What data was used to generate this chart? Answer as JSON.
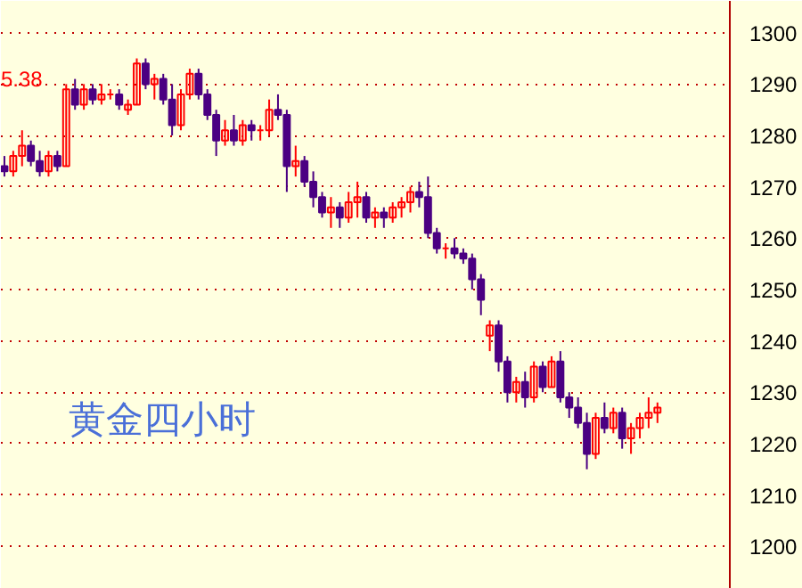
{
  "chart_data": {
    "type": "candlestick",
    "categories": [
      null,
      null,
      null,
      null,
      null,
      null,
      null,
      null,
      null,
      null,
      null,
      null,
      null,
      null,
      null,
      null,
      null,
      null,
      null,
      null,
      null,
      null,
      null,
      null,
      null,
      null,
      null,
      null,
      null,
      null,
      null,
      null,
      null,
      null,
      null,
      null,
      null,
      null,
      null,
      null,
      null,
      null,
      null,
      null,
      null,
      null,
      null,
      null,
      null,
      null,
      null,
      null,
      null,
      null,
      null,
      null,
      null,
      null,
      null,
      null,
      null,
      null,
      null,
      null,
      null,
      null,
      null,
      null,
      null,
      null,
      null,
      null,
      null,
      null,
      null
    ],
    "ohlc": [
      [
        1274,
        1276,
        1272,
        1273
      ],
      [
        1273,
        1277,
        1272,
        1276
      ],
      [
        1276,
        1281,
        1274,
        1278
      ],
      [
        1278,
        1279,
        1274,
        1275
      ],
      [
        1275,
        1277,
        1272,
        1273
      ],
      [
        1273,
        1277,
        1272,
        1276
      ],
      [
        1276,
        1277,
        1273,
        1274
      ],
      [
        1274,
        1290,
        1274,
        1289
      ],
      [
        1289,
        1291,
        1285,
        1286
      ],
      [
        1286,
        1290,
        1285,
        1289
      ],
      [
        1289,
        1290,
        1286,
        1287
      ],
      [
        1287,
        1290,
        1286,
        1288
      ],
      [
        1288,
        1289,
        1287,
        1288
      ],
      [
        1288,
        1289,
        1285,
        1286
      ],
      [
        1285,
        1287,
        1284,
        1286
      ],
      [
        1286,
        1295,
        1286,
        1294
      ],
      [
        1294,
        1295,
        1289,
        1290
      ],
      [
        1290,
        1292,
        1287,
        1291
      ],
      [
        1291,
        1292,
        1286,
        1287
      ],
      [
        1287,
        1290,
        1280,
        1282
      ],
      [
        1282,
        1289,
        1281,
        1288
      ],
      [
        1288,
        1293,
        1287,
        1292
      ],
      [
        1292,
        1293,
        1287,
        1288
      ],
      [
        1288,
        1289,
        1283,
        1284
      ],
      [
        1284,
        1285,
        1276,
        1279
      ],
      [
        1279,
        1283,
        1278,
        1281
      ],
      [
        1281,
        1284,
        1278,
        1279
      ],
      [
        1279,
        1283,
        1278,
        1282
      ],
      [
        1282,
        1283,
        1279,
        1281
      ],
      [
        1281,
        1282,
        1279,
        1281
      ],
      [
        1281,
        1287,
        1280,
        1285
      ],
      [
        1285,
        1288,
        1283,
        1284
      ],
      [
        1284,
        1285,
        1269,
        1274
      ],
      [
        1274,
        1278,
        1272,
        1275
      ],
      [
        1275,
        1276,
        1270,
        1271
      ],
      [
        1271,
        1273,
        1266,
        1268
      ],
      [
        1268,
        1269,
        1264,
        1265
      ],
      [
        1265,
        1268,
        1262,
        1266
      ],
      [
        1266,
        1267,
        1262,
        1264
      ],
      [
        1264,
        1269,
        1263,
        1267
      ],
      [
        1267,
        1271,
        1264,
        1268
      ],
      [
        1268,
        1269,
        1263,
        1264
      ],
      [
        1264,
        1266,
        1262,
        1265
      ],
      [
        1265,
        1266,
        1262,
        1264
      ],
      [
        1264,
        1267,
        1263,
        1266
      ],
      [
        1266,
        1268,
        1264,
        1267
      ],
      [
        1267,
        1270,
        1265,
        1269
      ],
      [
        1269,
        1271,
        1266,
        1268
      ],
      [
        1268,
        1272,
        1260,
        1261
      ],
      [
        1261,
        1262,
        1257,
        1258
      ],
      [
        1258,
        1259,
        1256,
        1258
      ],
      [
        1258,
        1260,
        1256,
        1257
      ],
      [
        1257,
        1258,
        1255,
        1256
      ],
      [
        1256,
        1257,
        1250,
        1252
      ],
      [
        1252,
        1253,
        1245,
        1248
      ],
      [
        1241,
        1244,
        1238,
        1243
      ],
      [
        1243,
        1244,
        1234,
        1236
      ],
      [
        1236,
        1237,
        1228,
        1230
      ],
      [
        1230,
        1233,
        1228,
        1232
      ],
      [
        1232,
        1234,
        1227,
        1229
      ],
      [
        1229,
        1236,
        1228,
        1235
      ],
      [
        1235,
        1236,
        1230,
        1231
      ],
      [
        1231,
        1237,
        1231,
        1236
      ],
      [
        1236,
        1238,
        1228,
        1229
      ],
      [
        1229,
        1230,
        1225,
        1227
      ],
      [
        1227,
        1229,
        1223,
        1224
      ],
      [
        1224,
        1226,
        1215,
        1218
      ],
      [
        1218,
        1226,
        1217,
        1225
      ],
      [
        1225,
        1228,
        1222,
        1223
      ],
      [
        1223,
        1227,
        1222,
        1226
      ],
      [
        1226,
        1227,
        1219,
        1221
      ],
      [
        1221,
        1224,
        1218,
        1223
      ],
      [
        1223,
        1226,
        1221,
        1225
      ],
      [
        1225,
        1229,
        1223,
        1226
      ],
      [
        1226,
        1228,
        1224,
        1227
      ]
    ],
    "colors": [
      "#4b0082",
      "#ff0000",
      "#ff0000",
      "#4b0082",
      "#4b0082",
      "#ff0000",
      "#4b0082",
      "#ff0000",
      "#4b0082",
      "#ff0000",
      "#4b0082",
      "#ff0000",
      "#ff0000",
      "#4b0082",
      "#ff0000",
      "#ff0000",
      "#4b0082",
      "#ff0000",
      "#4b0082",
      "#4b0082",
      "#ff0000",
      "#ff0000",
      "#4b0082",
      "#4b0082",
      "#4b0082",
      "#ff0000",
      "#4b0082",
      "#ff0000",
      "#4b0082",
      "#ff0000",
      "#ff0000",
      "#4b0082",
      "#4b0082",
      "#ff0000",
      "#4b0082",
      "#4b0082",
      "#4b0082",
      "#ff0000",
      "#4b0082",
      "#ff0000",
      "#ff0000",
      "#4b0082",
      "#ff0000",
      "#4b0082",
      "#ff0000",
      "#ff0000",
      "#ff0000",
      "#4b0082",
      "#4b0082",
      "#4b0082",
      "#ff0000",
      "#4b0082",
      "#4b0082",
      "#4b0082",
      "#4b0082",
      "#ff0000",
      "#4b0082",
      "#4b0082",
      "#ff0000",
      "#4b0082",
      "#ff0000",
      "#4b0082",
      "#ff0000",
      "#4b0082",
      "#4b0082",
      "#4b0082",
      "#4b0082",
      "#ff0000",
      "#4b0082",
      "#ff0000",
      "#4b0082",
      "#ff0000",
      "#ff0000",
      "#ff0000",
      "#ff0000"
    ],
    "ylim": [
      1191.7,
      1306.2
    ],
    "yticks": [
      1200,
      1210,
      1220,
      1230,
      1240,
      1250,
      1260,
      1270,
      1280,
      1290,
      1300
    ],
    "grid": "y",
    "annotations": [
      "5.38",
      "黄金四小时"
    ]
  }
}
